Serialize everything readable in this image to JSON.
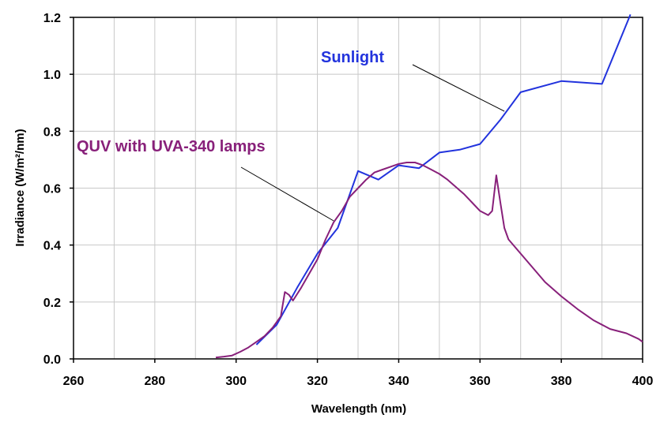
{
  "chart_data": {
    "type": "line",
    "xlabel": "Wavelength (nm)",
    "ylabel": "Irradiance (W/m²/nm)",
    "xlim": [
      260,
      400
    ],
    "ylim": [
      0,
      1.2
    ],
    "x_ticks": [
      260,
      280,
      300,
      320,
      340,
      360,
      380,
      400
    ],
    "y_ticks": [
      "0.0",
      "0.2",
      "0.4",
      "0.6",
      "0.8",
      "1.0",
      "1.2"
    ],
    "y_tick_values": [
      0,
      0.2,
      0.4,
      0.6,
      0.8,
      1.0,
      1.2
    ],
    "x_grid_step": 10,
    "grid": true,
    "series": [
      {
        "name": "Sunlight",
        "color": "#2233dd",
        "x": [
          305,
          310,
          315,
          320,
          325,
          330,
          335,
          340,
          345,
          350,
          355,
          360,
          365,
          370,
          380,
          390,
          397
        ],
        "y": [
          0.05,
          0.12,
          0.25,
          0.37,
          0.46,
          0.66,
          0.63,
          0.68,
          0.67,
          0.725,
          0.735,
          0.755,
          0.84,
          0.937,
          0.976,
          0.966,
          1.21
        ]
      },
      {
        "name": "QUV with UVA-340 lamps",
        "color": "#88207a",
        "x": [
          295,
          297,
          299,
          301,
          303,
          305,
          307,
          309,
          311,
          312,
          313,
          314,
          316,
          318,
          320,
          322,
          324,
          326,
          328,
          330,
          332,
          334,
          336,
          338,
          340,
          342,
          344,
          346,
          348,
          350,
          352,
          354,
          356,
          358,
          360,
          362,
          363,
          364,
          365,
          366,
          367,
          370,
          373,
          376,
          380,
          384,
          388,
          392,
          396,
          399,
          400
        ],
        "y": [
          0.005,
          0.008,
          0.012,
          0.025,
          0.04,
          0.06,
          0.08,
          0.11,
          0.15,
          0.235,
          0.225,
          0.205,
          0.25,
          0.3,
          0.35,
          0.42,
          0.48,
          0.52,
          0.57,
          0.6,
          0.63,
          0.655,
          0.665,
          0.675,
          0.685,
          0.69,
          0.69,
          0.68,
          0.665,
          0.65,
          0.63,
          0.605,
          0.58,
          0.55,
          0.52,
          0.505,
          0.52,
          0.645,
          0.55,
          0.46,
          0.42,
          0.37,
          0.32,
          0.27,
          0.22,
          0.175,
          0.135,
          0.105,
          0.09,
          0.07,
          0.06
        ]
      }
    ],
    "annotations": [
      {
        "series": 0,
        "text": "Sunlight",
        "point": [
          366,
          0.87
        ]
      },
      {
        "series": 1,
        "text": "QUV with UVA-340 lamps",
        "point": [
          324,
          0.485
        ]
      }
    ]
  }
}
